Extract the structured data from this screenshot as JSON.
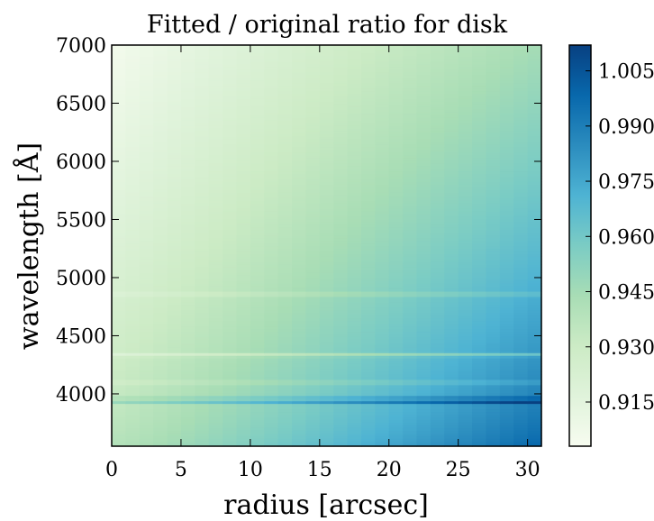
{
  "chart_data": {
    "type": "heatmap",
    "title": "Fitted / original ratio for disk",
    "xlabel": "radius [arcsec]",
    "ylabel": "wavelength [Å]",
    "xlim": [
      0,
      31
    ],
    "ylim": [
      3550,
      7000
    ],
    "x_ticks": [
      0,
      5,
      10,
      15,
      20,
      25,
      30
    ],
    "y_ticks": [
      4000,
      4500,
      5000,
      5500,
      6000,
      6500,
      7000
    ],
    "colorbar": {
      "colormap": "GnBu",
      "vmin": 0.903,
      "vmax": 1.012,
      "ticks": [
        "1.005",
        "0.990",
        "0.975",
        "0.960",
        "0.945",
        "0.930",
        "0.915"
      ],
      "tick_values": [
        1.005,
        0.99,
        0.975,
        0.96,
        0.945,
        0.93,
        0.915
      ]
    },
    "grid": false,
    "surface": {
      "description_values": "ratio increases with radius and toward shorter wavelength",
      "corner_values": {
        "r0_w7000": 0.905,
        "r31_w7000": 0.945,
        "r0_w3550": 0.94,
        "r31_w3550": 1.0
      },
      "spectral_features": [
        {
          "wavelength": 4861,
          "delta": -0.012
        },
        {
          "wavelength": 4340,
          "delta": -0.02
        },
        {
          "wavelength": 4102,
          "delta": -0.012
        },
        {
          "wavelength": 3934,
          "delta": 0.03
        },
        {
          "wavelength": 3968,
          "delta": 0.015
        }
      ]
    }
  },
  "colors": {
    "cmap_stops": [
      "#f7fcf0",
      "#e0f3db",
      "#ccebc5",
      "#a8ddb5",
      "#7bccc4",
      "#4eb3d3",
      "#2b8cbe",
      "#0868ac",
      "#084081"
    ]
  }
}
